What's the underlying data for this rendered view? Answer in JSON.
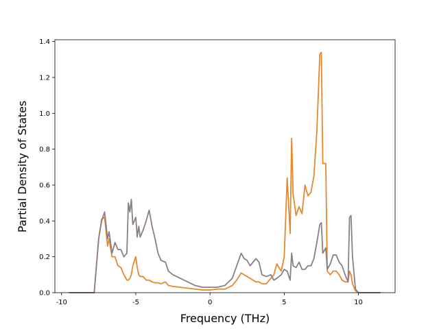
{
  "chart_data": {
    "type": "line",
    "x_label": "Frequency (THz)",
    "y_label": "Partial Density of States",
    "x": [
      -9.5,
      -7.8,
      -7.7,
      -7.5,
      -7.3,
      -7.1,
      -6.9,
      -6.8,
      -6.6,
      -6.4,
      -6.2,
      -6.0,
      -5.8,
      -5.6,
      -5.5,
      -5.4,
      -5.3,
      -5.2,
      -5.0,
      -4.9,
      -4.8,
      -4.7,
      -4.5,
      -4.3,
      -4.1,
      -3.9,
      -3.7,
      -3.5,
      -3.3,
      -3.0,
      -2.8,
      -2.5,
      -2.0,
      -1.5,
      -1.0,
      -0.5,
      0,
      0.5,
      1.0,
      1.5,
      1.8,
      2.1,
      2.3,
      2.5,
      2.7,
      2.9,
      3.1,
      3.3,
      3.5,
      3.8,
      4.1,
      4.3,
      4.5,
      4.8,
      5.0,
      5.2,
      5.4,
      5.5,
      5.6,
      5.8,
      6.0,
      6.2,
      6.4,
      6.6,
      6.8,
      7.0,
      7.2,
      7.4,
      7.5,
      7.6,
      7.8,
      7.9,
      8.1,
      8.3,
      8.5,
      8.7,
      8.9,
      9.1,
      9.3,
      9.4,
      9.5,
      9.6,
      9.8,
      10.0,
      11.5
    ],
    "series": [
      {
        "color": "#e8862a",
        "values": [
          0,
          0,
          0.1,
          0.3,
          0.41,
          0.42,
          0.26,
          0.3,
          0.2,
          0.2,
          0.15,
          0.14,
          0.1,
          0.07,
          0.07,
          0.08,
          0.1,
          0.15,
          0.2,
          0.14,
          0.1,
          0.09,
          0.09,
          0.07,
          0.07,
          0.06,
          0.055,
          0.055,
          0.05,
          0.06,
          0.04,
          0.035,
          0.03,
          0.025,
          0.02,
          0.015,
          0.015,
          0.02,
          0.02,
          0.04,
          0.07,
          0.11,
          0.1,
          0.09,
          0.08,
          0.07,
          0.06,
          0.06,
          0.05,
          0.05,
          0.08,
          0.1,
          0.16,
          0.12,
          0.2,
          0.64,
          0.33,
          0.86,
          0.55,
          0.43,
          0.48,
          0.44,
          0.6,
          0.54,
          0.56,
          0.65,
          0.9,
          1.33,
          1.34,
          0.72,
          0.72,
          0.12,
          0.1,
          0.12,
          0.12,
          0.1,
          0.07,
          0.06,
          0.06,
          0.12,
          0.1,
          0.05,
          0.01,
          0,
          0
        ]
      },
      {
        "color": "#8a7d88",
        "values": [
          0,
          0,
          0.1,
          0.3,
          0.4,
          0.45,
          0.3,
          0.34,
          0.22,
          0.28,
          0.24,
          0.24,
          0.2,
          0.22,
          0.5,
          0.45,
          0.52,
          0.38,
          0.42,
          0.31,
          0.37,
          0.31,
          0.35,
          0.4,
          0.46,
          0.37,
          0.3,
          0.22,
          0.18,
          0.17,
          0.12,
          0.1,
          0.08,
          0.06,
          0.04,
          0.03,
          0.03,
          0.03,
          0.04,
          0.08,
          0.15,
          0.22,
          0.19,
          0.18,
          0.15,
          0.17,
          0.19,
          0.17,
          0.1,
          0.09,
          0.1,
          0.07,
          0.08,
          0.1,
          0.13,
          0.12,
          0.07,
          0.22,
          0.15,
          0.14,
          0.17,
          0.13,
          0.13,
          0.15,
          0.15,
          0.19,
          0.28,
          0.38,
          0.39,
          0.22,
          0.25,
          0.13,
          0.16,
          0.21,
          0.21,
          0.17,
          0.15,
          0.1,
          0.06,
          0.42,
          0.43,
          0.2,
          0.02,
          0,
          0
        ]
      }
    ],
    "xlim": [
      -10.45,
      12.47
    ],
    "ylim": [
      0,
      1.41
    ],
    "xticks": [
      -10,
      -5,
      0,
      5,
      10
    ],
    "yticks": [
      {
        "value": 0,
        "label": "0.0"
      },
      {
        "value": 0.2,
        "label": "0.2"
      },
      {
        "value": 0.4,
        "label": "0.4"
      },
      {
        "value": 0.6,
        "label": "0.6"
      },
      {
        "value": 0.8,
        "label": "0.8"
      },
      {
        "value": 1.0,
        "label": "1.0"
      },
      {
        "value": 1.2,
        "label": "1.2"
      },
      {
        "value": 1.4,
        "label": "1.4"
      }
    ]
  }
}
